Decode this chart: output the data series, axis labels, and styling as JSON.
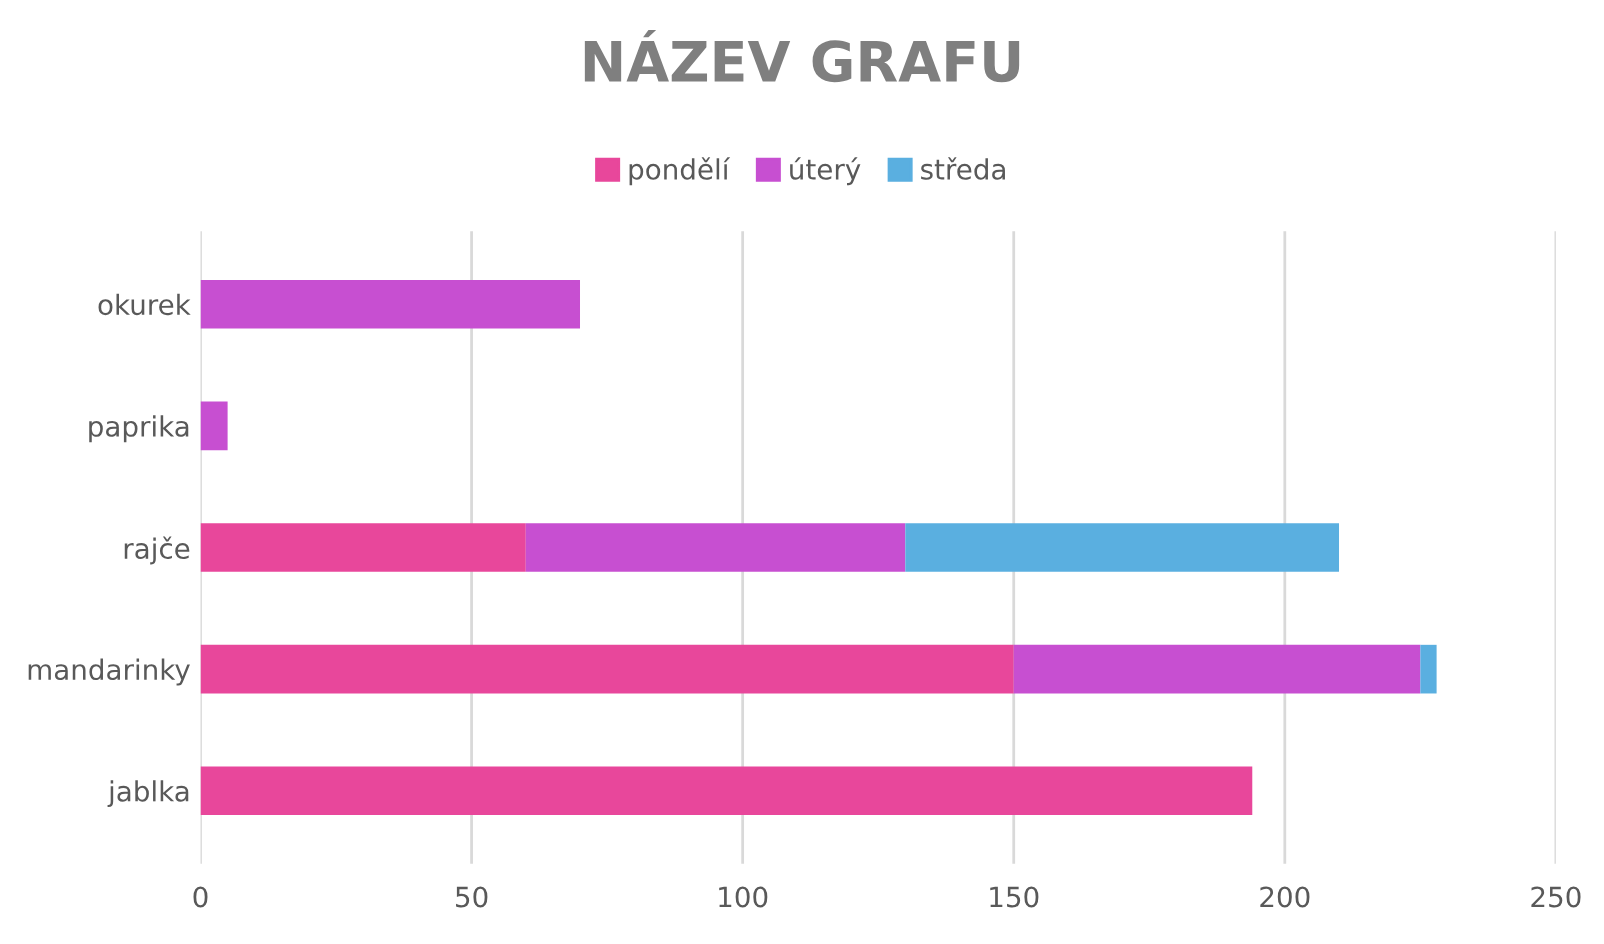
{
  "chart_data": {
    "type": "bar",
    "title": "NÁZEV GRAFU",
    "orientation": "horizontal",
    "stacked": true,
    "categories": [
      "okurek",
      "paprika",
      "rajče",
      "mandarinky",
      "jablka"
    ],
    "series": [
      {
        "name": "pondělí",
        "color": "#e8479b",
        "values": [
          null,
          null,
          60,
          150,
          194
        ]
      },
      {
        "name": "úterý",
        "color": "#c74fd1",
        "values": [
          70,
          5,
          70,
          75,
          null
        ]
      },
      {
        "name": "středa",
        "color": "#5aafe0",
        "values": [
          null,
          null,
          80,
          3,
          null
        ]
      }
    ],
    "xlim": [
      0,
      250
    ],
    "xticks": [
      0,
      50,
      100,
      150,
      200,
      250
    ],
    "grid": "x",
    "legend": "top"
  }
}
